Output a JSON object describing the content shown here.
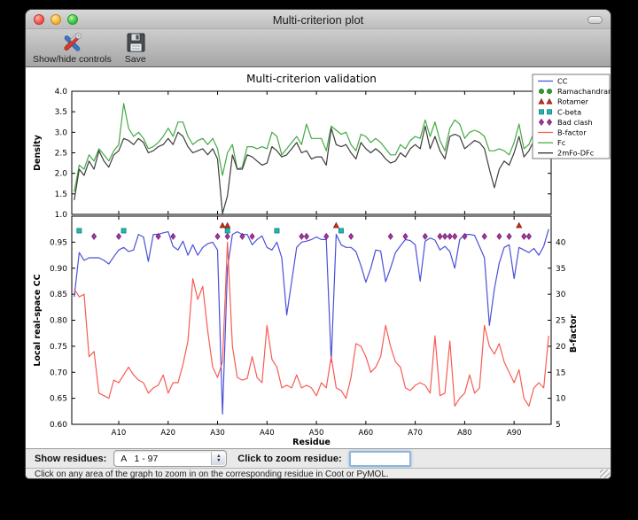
{
  "window": {
    "title": "Multi-criterion plot",
    "toolbar": {
      "show_hide_label": "Show/hide controls",
      "save_label": "Save"
    }
  },
  "controls": {
    "show_residues_label": "Show residues:",
    "residue_range_value": "A   1 - 97",
    "zoom_residue_label": "Click to zoom residue:",
    "zoom_input_value": ""
  },
  "status_bar": {
    "text": "Click on any area of the graph to zoom in on the corresponding residue in Coot or PyMOL."
  },
  "legend": {
    "position": "top-right",
    "entries": [
      {
        "label": "CC",
        "kind": "line",
        "color": "#4a50d8"
      },
      {
        "label": "Ramachandran",
        "kind": "marker",
        "shape": "circle",
        "color": "#28a128",
        "edge": "#166a16"
      },
      {
        "label": "Rotamer",
        "kind": "marker",
        "shape": "triangle",
        "color": "#c9301c",
        "edge": "#7e1c10"
      },
      {
        "label": "C-beta",
        "kind": "marker",
        "shape": "square",
        "color": "#1cb8b0",
        "edge": "#0d7a74"
      },
      {
        "label": "Bad clash",
        "kind": "marker",
        "shape": "diamond",
        "color": "#a832a8",
        "edge": "#671e67"
      },
      {
        "label": "B-factor",
        "kind": "line",
        "color": "#f75c54"
      },
      {
        "label": "Fc",
        "kind": "line",
        "color": "#43a843"
      },
      {
        "label": "2mFo-DFc",
        "kind": "line",
        "color": "#3c3c3c"
      }
    ]
  },
  "chart_data": [
    {
      "type": "line",
      "title": "Multi-criterion validation",
      "ylabel": "Density",
      "ylim": [
        1.0,
        4.0
      ],
      "yticks": {
        "values": [
          1.0,
          1.5,
          2.0,
          2.5,
          3.0,
          3.5,
          4.0
        ],
        "labels": [
          "1.0",
          "1.5",
          "2.0",
          "2.5",
          "3.0",
          "3.5",
          "4.0"
        ]
      },
      "residue_start": 1,
      "n_points": 97,
      "series": [
        {
          "name": "Fc",
          "color": "#43a843",
          "values": [
            1.55,
            2.2,
            2.1,
            2.45,
            2.3,
            2.6,
            2.45,
            2.3,
            2.55,
            2.7,
            3.7,
            3.1,
            2.9,
            3.0,
            2.85,
            2.6,
            2.65,
            2.75,
            2.9,
            3.1,
            2.9,
            3.25,
            3.25,
            2.9,
            2.7,
            2.8,
            2.85,
            2.7,
            2.85,
            2.6,
            1.95,
            2.5,
            2.7,
            2.1,
            2.15,
            2.65,
            2.65,
            2.6,
            2.65,
            2.6,
            3.0,
            2.9,
            2.45,
            2.6,
            2.75,
            2.9,
            2.7,
            3.2,
            2.85,
            2.85,
            2.85,
            2.55,
            3.15,
            3.05,
            2.95,
            3.0,
            2.7,
            2.55,
            2.95,
            2.9,
            2.75,
            2.85,
            2.75,
            2.6,
            2.45,
            2.45,
            2.7,
            2.6,
            2.8,
            2.9,
            2.85,
            3.3,
            2.9,
            3.25,
            2.8,
            2.55,
            3.1,
            3.3,
            3.2,
            2.85,
            3.0,
            3.05,
            3.0,
            2.9,
            2.55,
            2.55,
            2.6,
            2.55,
            2.45,
            2.75,
            3.2,
            2.6,
            2.7,
            3.0,
            3.15,
            3.5,
            3.1
          ]
        },
        {
          "name": "2mFo-DFc",
          "color": "#3c3c3c",
          "values": [
            1.35,
            2.1,
            1.95,
            2.3,
            2.1,
            2.55,
            2.3,
            2.15,
            2.45,
            2.55,
            2.85,
            2.8,
            2.7,
            2.85,
            2.75,
            2.5,
            2.55,
            2.65,
            2.7,
            2.85,
            2.7,
            3.0,
            2.9,
            2.65,
            2.5,
            2.55,
            2.6,
            2.45,
            2.6,
            2.35,
            1.02,
            1.45,
            2.45,
            2.1,
            2.1,
            2.45,
            2.4,
            2.3,
            2.2,
            2.25,
            2.65,
            2.55,
            2.4,
            2.45,
            2.6,
            2.75,
            2.5,
            2.55,
            2.35,
            2.4,
            2.4,
            2.2,
            3.1,
            2.7,
            2.65,
            2.7,
            2.5,
            2.35,
            2.75,
            2.6,
            2.5,
            2.6,
            2.5,
            2.35,
            2.25,
            2.3,
            2.5,
            2.4,
            2.6,
            2.7,
            2.6,
            3.15,
            2.6,
            2.9,
            2.55,
            2.35,
            2.9,
            2.95,
            2.9,
            2.6,
            2.7,
            2.8,
            2.75,
            2.6,
            2.1,
            1.65,
            2.1,
            2.3,
            2.2,
            2.5,
            2.9,
            2.4,
            2.55,
            2.8,
            2.85,
            3.0,
            3.15
          ]
        }
      ]
    },
    {
      "type": "line+markers",
      "xlabel": "Residue",
      "ylabel_left": "Local real-space CC",
      "ylabel_right": "B-factor",
      "ylim_left": [
        0.6,
        1.0
      ],
      "ylim_right": [
        5,
        45
      ],
      "yticks_left": {
        "values": [
          0.6,
          0.65,
          0.7,
          0.75,
          0.8,
          0.85,
          0.9,
          0.95
        ],
        "labels": [
          "0.60",
          "0.65",
          "0.70",
          "0.75",
          "0.80",
          "0.85",
          "0.90",
          "0.95"
        ]
      },
      "yticks_right": {
        "values": [
          5,
          10,
          15,
          20,
          25,
          30,
          35,
          40
        ],
        "labels": [
          "5",
          "10",
          "15",
          "20",
          "25",
          "30",
          "35",
          "40"
        ]
      },
      "xticks": {
        "values": [
          10,
          20,
          30,
          40,
          50,
          60,
          70,
          80,
          90
        ],
        "labels": [
          "A10",
          "A20",
          "A30",
          "A40",
          "A50",
          "A60",
          "A70",
          "A80",
          "A90"
        ]
      },
      "residue_start": 1,
      "n_points": 97,
      "series": [
        {
          "name": "CC",
          "axis": "left",
          "color": "#4a50d8",
          "values": [
            0.845,
            0.93,
            0.915,
            0.92,
            0.92,
            0.92,
            0.915,
            0.908,
            0.922,
            0.935,
            0.94,
            0.932,
            0.935,
            0.965,
            0.96,
            0.913,
            0.965,
            0.965,
            0.968,
            0.97,
            0.942,
            0.935,
            0.952,
            0.925,
            0.945,
            0.925,
            0.94,
            0.947,
            0.95,
            0.935,
            0.62,
            0.9,
            0.965,
            0.97,
            0.965,
            0.965,
            0.945,
            0.955,
            0.962,
            0.94,
            0.935,
            0.95,
            0.92,
            0.81,
            0.875,
            0.94,
            0.95,
            0.952,
            0.955,
            0.96,
            0.955,
            0.955,
            0.72,
            0.965,
            0.945,
            0.94,
            0.94,
            0.932,
            0.905,
            0.873,
            0.9,
            0.935,
            0.933,
            0.874,
            0.9,
            0.93,
            0.943,
            0.955,
            0.953,
            0.945,
            0.875,
            0.952,
            0.958,
            0.954,
            0.935,
            0.942,
            0.932,
            0.9,
            0.955,
            0.965,
            0.965,
            0.963,
            0.942,
            0.92,
            0.79,
            0.86,
            0.91,
            0.94,
            0.945,
            0.88,
            0.94,
            0.935,
            0.93,
            0.938,
            0.925,
            0.942,
            0.975
          ]
        },
        {
          "name": "B-factor",
          "axis": "right",
          "color": "#f75c54",
          "values": [
            31,
            29.5,
            30,
            18,
            19,
            11,
            10.5,
            10,
            13.5,
            13,
            14.5,
            16,
            14.5,
            13.5,
            13,
            11,
            12,
            12.5,
            14.5,
            11,
            13,
            13,
            16.5,
            21,
            33,
            29,
            31.5,
            23,
            16,
            14,
            17,
            40,
            20,
            14,
            13.5,
            13.8,
            18,
            14,
            13,
            24,
            17.5,
            16,
            12,
            12.5,
            12,
            14.5,
            12,
            12.5,
            12,
            10.5,
            13,
            12,
            18,
            12,
            11.5,
            10,
            14,
            20.5,
            20,
            18,
            15,
            16,
            18,
            24,
            20,
            17,
            16,
            12,
            11.5,
            12.5,
            13,
            12.5,
            11,
            22,
            10.5,
            11,
            21,
            8.5,
            10,
            11,
            14.5,
            11,
            12,
            24,
            20,
            18.5,
            20.5,
            17,
            15,
            13,
            15.5,
            10,
            8.5,
            12,
            13,
            12,
            22
          ]
        }
      ],
      "markers": [
        {
          "name": "Ramachandran",
          "shape": "circle",
          "color": "#28a128",
          "edge": "#166a16",
          "y_cc": 0.99,
          "residues": []
        },
        {
          "name": "Rotamer",
          "shape": "triangle",
          "color": "#c9301c",
          "edge": "#7e1c10",
          "y_cc": 0.982,
          "residues": [
            31,
            32,
            54,
            91
          ]
        },
        {
          "name": "C-beta",
          "shape": "square",
          "color": "#1cb8b0",
          "edge": "#0d7a74",
          "y_cc": 0.972,
          "residues": [
            2,
            11,
            32,
            42,
            55
          ]
        },
        {
          "name": "Bad clash",
          "shape": "diamond",
          "color": "#a832a8",
          "edge": "#671e67",
          "y_cc": 0.961,
          "residues": [
            5,
            10,
            18,
            21,
            30,
            32,
            35,
            37,
            47,
            48,
            52,
            57,
            65,
            68,
            72,
            75,
            76,
            77,
            78,
            80,
            84,
            87,
            89,
            92,
            93
          ]
        }
      ]
    }
  ]
}
